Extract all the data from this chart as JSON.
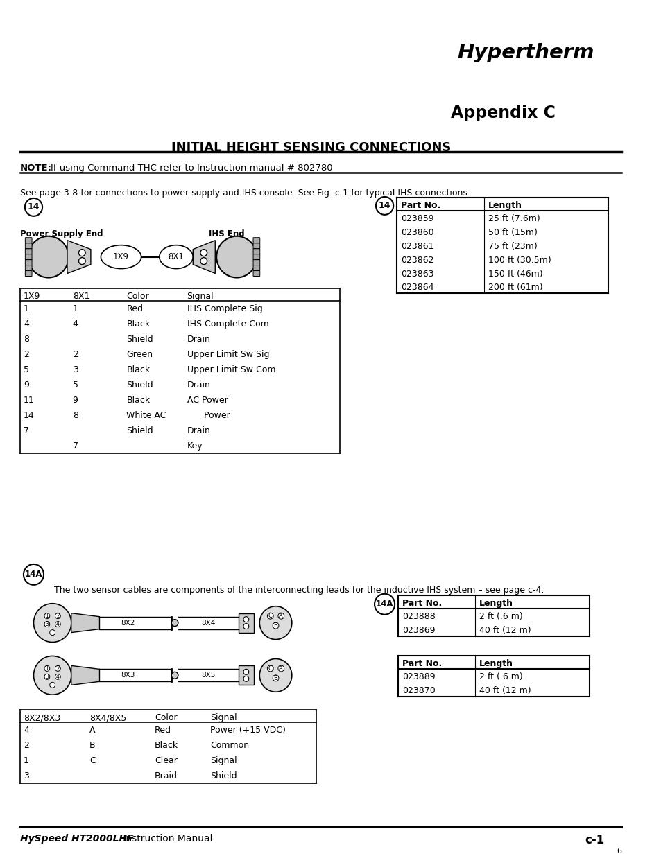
{
  "title_appendix": "Appendix C",
  "title_main": "INITIAL HEIGHT SENSING CONNECTIONS",
  "note_bold": "NOTE:",
  "note_text": "If using Command THC refer to Instruction manual # 802780",
  "intro_text": "See page 3-8 for connections to power supply and IHS console. See Fig. c-1 for typical IHS connections.",
  "power_supply_end": "Power Supply End",
  "ihs_end": "IHS End",
  "table1_headers": [
    "1X9",
    "8X1",
    "Color",
    "Signal"
  ],
  "table1_rows": [
    [
      "1",
      "1",
      "Red",
      "IHS Complete Sig"
    ],
    [
      "4",
      "4",
      "Black",
      "IHS Complete Com"
    ],
    [
      "8",
      "",
      "Shield",
      "Drain"
    ],
    [
      "2",
      "2",
      "Green",
      "Upper Limit Sw Sig"
    ],
    [
      "5",
      "3",
      "Black",
      "Upper Limit Sw Com"
    ],
    [
      "9",
      "5",
      "Shield",
      "Drain"
    ],
    [
      "11",
      "9",
      "Black",
      "AC Power"
    ],
    [
      "14",
      "8",
      "White AC",
      "      Power"
    ],
    [
      "7",
      "",
      "Shield",
      "Drain"
    ],
    [
      "",
      "7",
      "",
      "Key"
    ]
  ],
  "table2_headers": [
    "Part No.",
    "Length"
  ],
  "table2_rows": [
    [
      "023859",
      "25 ft (7.6m)"
    ],
    [
      "023860",
      "50 ft (15m)"
    ],
    [
      "023861",
      "75 ft (23m)"
    ],
    [
      "023862",
      "100 ft (30.5m)"
    ],
    [
      "023863",
      "150 ft (46m)"
    ],
    [
      "023864",
      "200 ft (61m)"
    ]
  ],
  "sensor_text": "The two sensor cables are components of the interconnecting leads for the inductive IHS system – see page c-4.",
  "table3_headers": [
    "Part No.",
    "Length"
  ],
  "table3_rows": [
    [
      "023888",
      "2 ft (.6 m)"
    ],
    [
      "023869",
      "40 ft (12 m)"
    ]
  ],
  "table4_headers": [
    "Part No.",
    "Length"
  ],
  "table4_rows": [
    [
      "023889",
      "2 ft (.6 m)"
    ],
    [
      "023870",
      "40 ft (12 m)"
    ]
  ],
  "table5_headers": [
    "8X2/8X3",
    "8X4/8X5",
    "Color",
    "Signal"
  ],
  "table5_rows": [
    [
      "4",
      "A",
      "Red",
      "Power (+15 VDC)"
    ],
    [
      "2",
      "B",
      "Black",
      "Common"
    ],
    [
      "1",
      "C",
      "Clear",
      "Signal"
    ],
    [
      "3",
      "",
      "Braid",
      "Shield"
    ]
  ],
  "footer_italic_bold": "HySpeed HT2000LHF",
  "footer_normal": " Instruction Manual",
  "footer_right": "c-1",
  "footer_page": "6",
  "logo_text": "Hypertherm"
}
